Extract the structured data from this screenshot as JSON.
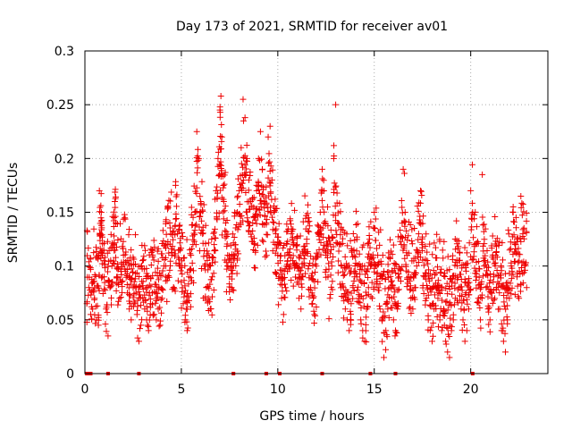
{
  "chart_data": {
    "type": "scatter",
    "title": "Day 173 of 2021, SRMTID for receiver av01",
    "xlabel": "GPS time / hours",
    "ylabel": "SRMTID / TECUs",
    "xlim": [
      0,
      24
    ],
    "ylim": [
      0,
      0.3
    ],
    "plot_end_x": 23.0,
    "xticks": [
      0,
      5,
      10,
      15,
      20
    ],
    "xtick_labels": [
      "0",
      "5",
      "10",
      "15",
      "20"
    ],
    "yticks": [
      0,
      0.05,
      0.1,
      0.15,
      0.2,
      0.25,
      0.3
    ],
    "ytick_labels": [
      "0",
      "0.05",
      "0.1",
      "0.15",
      "0.2",
      "0.25",
      "0.3"
    ],
    "grid": true,
    "marker": "+",
    "color": "#ee0000",
    "series": [
      {
        "name": "SRMTID",
        "points": [
          [
            0.1,
            0.065
          ],
          [
            0.2,
            0.08
          ],
          [
            0.3,
            0.055
          ],
          [
            0.4,
            0.06
          ],
          [
            0.5,
            0.07
          ],
          [
            0.6,
            0.05
          ],
          [
            0.7,
            0.045
          ],
          [
            0.75,
            0.17
          ],
          [
            0.8,
            0.13
          ],
          [
            0.85,
            0.15
          ],
          [
            0.9,
            0.11
          ],
          [
            1.0,
            0.09
          ],
          [
            1.1,
            0.06
          ],
          [
            1.2,
            0.035
          ],
          [
            1.3,
            0.08
          ],
          [
            1.4,
            0.1
          ],
          [
            1.5,
            0.12
          ],
          [
            1.55,
            0.16
          ],
          [
            1.6,
            0.14
          ],
          [
            1.7,
            0.09
          ],
          [
            1.8,
            0.07
          ],
          [
            1.9,
            0.085
          ],
          [
            2.0,
            0.11
          ],
          [
            2.1,
            0.095
          ],
          [
            2.2,
            0.075
          ],
          [
            2.3,
            0.06
          ],
          [
            2.4,
            0.05
          ],
          [
            2.5,
            0.08
          ],
          [
            2.6,
            0.065
          ],
          [
            2.7,
            0.055
          ],
          [
            2.8,
            0.03
          ],
          [
            2.9,
            0.045
          ],
          [
            3.0,
            0.07
          ],
          [
            3.1,
            0.06
          ],
          [
            3.2,
            0.05
          ],
          [
            3.3,
            0.04
          ],
          [
            3.4,
            0.065
          ],
          [
            3.5,
            0.075
          ],
          [
            3.6,
            0.055
          ],
          [
            3.7,
            0.05
          ],
          [
            3.8,
            0.06
          ],
          [
            3.9,
            0.045
          ],
          [
            4.0,
            0.07
          ],
          [
            4.1,
            0.1
          ],
          [
            4.2,
            0.09
          ],
          [
            4.3,
            0.12
          ],
          [
            4.4,
            0.14
          ],
          [
            4.5,
            0.11
          ],
          [
            4.6,
            0.08
          ],
          [
            4.7,
            0.175
          ],
          [
            4.8,
            0.13
          ],
          [
            4.9,
            0.1
          ],
          [
            5.0,
            0.085
          ],
          [
            5.1,
            0.065
          ],
          [
            5.2,
            0.05
          ],
          [
            5.3,
            0.04
          ],
          [
            5.4,
            0.09
          ],
          [
            5.5,
            0.11
          ],
          [
            5.6,
            0.12
          ],
          [
            5.7,
            0.15
          ],
          [
            5.8,
            0.225
          ],
          [
            5.9,
            0.2
          ],
          [
            6.0,
            0.16
          ],
          [
            6.1,
            0.13
          ],
          [
            6.2,
            0.1
          ],
          [
            6.3,
            0.08
          ],
          [
            6.4,
            0.07
          ],
          [
            6.5,
            0.06
          ],
          [
            6.6,
            0.09
          ],
          [
            6.7,
            0.12
          ],
          [
            6.8,
            0.17
          ],
          [
            6.9,
            0.2
          ],
          [
            7.0,
            0.245
          ],
          [
            7.05,
            0.258
          ],
          [
            7.1,
            0.22
          ],
          [
            7.2,
            0.16
          ],
          [
            7.3,
            0.14
          ],
          [
            7.4,
            0.11
          ],
          [
            7.5,
            0.09
          ],
          [
            7.6,
            0.08
          ],
          [
            7.7,
            0.1
          ],
          [
            7.8,
            0.12
          ],
          [
            7.9,
            0.15
          ],
          [
            8.0,
            0.17
          ],
          [
            8.1,
            0.21
          ],
          [
            8.2,
            0.255
          ],
          [
            8.3,
            0.238
          ],
          [
            8.4,
            0.2
          ],
          [
            8.5,
            0.18
          ],
          [
            8.6,
            0.16
          ],
          [
            8.7,
            0.14
          ],
          [
            8.8,
            0.12
          ],
          [
            8.9,
            0.175
          ],
          [
            9.0,
            0.2
          ],
          [
            9.1,
            0.225
          ],
          [
            9.2,
            0.19
          ],
          [
            9.3,
            0.16
          ],
          [
            9.4,
            0.14
          ],
          [
            9.5,
            0.22
          ],
          [
            9.6,
            0.23
          ],
          [
            9.7,
            0.18
          ],
          [
            9.8,
            0.15
          ],
          [
            9.9,
            0.13
          ],
          [
            10.0,
            0.11
          ],
          [
            10.1,
            0.09
          ],
          [
            10.2,
            0.07
          ],
          [
            10.3,
            0.055
          ],
          [
            10.4,
            0.08
          ],
          [
            10.5,
            0.095
          ],
          [
            10.6,
            0.11
          ],
          [
            10.7,
            0.13
          ],
          [
            10.8,
            0.12
          ],
          [
            10.9,
            0.1
          ],
          [
            11.0,
            0.085
          ],
          [
            11.1,
            0.07
          ],
          [
            11.2,
            0.06
          ],
          [
            11.3,
            0.09
          ],
          [
            11.4,
            0.11
          ],
          [
            11.5,
            0.125
          ],
          [
            11.6,
            0.1
          ],
          [
            11.7,
            0.08
          ],
          [
            11.8,
            0.065
          ],
          [
            11.9,
            0.055
          ],
          [
            12.0,
            0.1
          ],
          [
            12.1,
            0.13
          ],
          [
            12.2,
            0.15
          ],
          [
            12.3,
            0.19
          ],
          [
            12.4,
            0.14
          ],
          [
            12.5,
            0.11
          ],
          [
            12.6,
            0.09
          ],
          [
            12.7,
            0.07
          ],
          [
            12.8,
            0.1
          ],
          [
            12.9,
            0.2
          ],
          [
            13.0,
            0.25
          ],
          [
            13.1,
            0.14
          ],
          [
            13.2,
            0.12
          ],
          [
            13.3,
            0.1
          ],
          [
            13.4,
            0.08
          ],
          [
            13.5,
            0.06
          ],
          [
            13.6,
            0.05
          ],
          [
            13.7,
            0.04
          ],
          [
            13.8,
            0.065
          ],
          [
            13.9,
            0.08
          ],
          [
            14.0,
            0.1
          ],
          [
            14.1,
            0.09
          ],
          [
            14.2,
            0.07
          ],
          [
            14.3,
            0.05
          ],
          [
            14.4,
            0.04
          ],
          [
            14.5,
            0.03
          ],
          [
            14.6,
            0.06
          ],
          [
            14.7,
            0.08
          ],
          [
            14.8,
            0.1
          ],
          [
            14.9,
            0.07
          ],
          [
            15.0,
            0.15
          ],
          [
            15.1,
            0.1
          ],
          [
            15.2,
            0.08
          ],
          [
            15.3,
            0.06
          ],
          [
            15.4,
            0.05
          ],
          [
            15.5,
            0.015
          ],
          [
            15.6,
            0.04
          ],
          [
            15.7,
            0.06
          ],
          [
            15.8,
            0.08
          ],
          [
            15.9,
            0.07
          ],
          [
            16.0,
            0.05
          ],
          [
            16.1,
            0.04
          ],
          [
            16.2,
            0.06
          ],
          [
            16.3,
            0.09
          ],
          [
            16.4,
            0.12
          ],
          [
            16.5,
            0.19
          ],
          [
            16.6,
            0.15
          ],
          [
            16.7,
            0.11
          ],
          [
            16.8,
            0.09
          ],
          [
            16.9,
            0.07
          ],
          [
            17.0,
            0.06
          ],
          [
            17.1,
            0.08
          ],
          [
            17.2,
            0.1
          ],
          [
            17.3,
            0.13
          ],
          [
            17.4,
            0.17
          ],
          [
            17.5,
            0.12
          ],
          [
            17.6,
            0.09
          ],
          [
            17.7,
            0.07
          ],
          [
            17.8,
            0.05
          ],
          [
            17.9,
            0.04
          ],
          [
            18.0,
            0.03
          ],
          [
            18.1,
            0.06
          ],
          [
            18.2,
            0.08
          ],
          [
            18.3,
            0.07
          ],
          [
            18.4,
            0.05
          ],
          [
            18.5,
            0.04
          ],
          [
            18.6,
            0.06
          ],
          [
            18.7,
            0.03
          ],
          [
            18.8,
            0.02
          ],
          [
            18.9,
            0.015
          ],
          [
            19.0,
            0.04
          ],
          [
            19.1,
            0.05
          ],
          [
            19.2,
            0.07
          ],
          [
            19.3,
            0.1
          ],
          [
            19.4,
            0.08
          ],
          [
            19.5,
            0.06
          ],
          [
            19.6,
            0.05
          ],
          [
            19.7,
            0.03
          ],
          [
            19.8,
            0.04
          ],
          [
            19.9,
            0.06
          ],
          [
            20.0,
            0.17
          ],
          [
            20.1,
            0.15
          ],
          [
            20.2,
            0.12
          ],
          [
            20.3,
            0.09
          ],
          [
            20.4,
            0.07
          ],
          [
            20.5,
            0.05
          ],
          [
            20.6,
            0.185
          ],
          [
            20.7,
            0.1
          ],
          [
            20.8,
            0.08
          ],
          [
            20.9,
            0.06
          ],
          [
            21.0,
            0.05
          ],
          [
            21.1,
            0.07
          ],
          [
            21.2,
            0.09
          ],
          [
            21.3,
            0.11
          ],
          [
            21.4,
            0.085
          ],
          [
            21.5,
            0.06
          ],
          [
            21.6,
            0.04
          ],
          [
            21.7,
            0.03
          ],
          [
            21.8,
            0.02
          ],
          [
            21.9,
            0.05
          ],
          [
            22.0,
            0.07
          ],
          [
            22.1,
            0.1
          ],
          [
            22.2,
            0.155
          ],
          [
            22.3,
            0.12
          ],
          [
            22.4,
            0.09
          ],
          [
            22.5,
            0.07
          ],
          [
            22.6,
            0.165
          ],
          [
            22.7,
            0.13
          ],
          [
            22.8,
            0.1
          ],
          [
            22.9,
            0.08
          ]
        ]
      }
    ],
    "zero_markers": [
      0.1,
      0.2,
      0.3,
      1.2,
      2.8,
      7.7,
      9.4,
      10.1,
      12.3,
      14.8,
      16.1,
      20.1
    ]
  }
}
